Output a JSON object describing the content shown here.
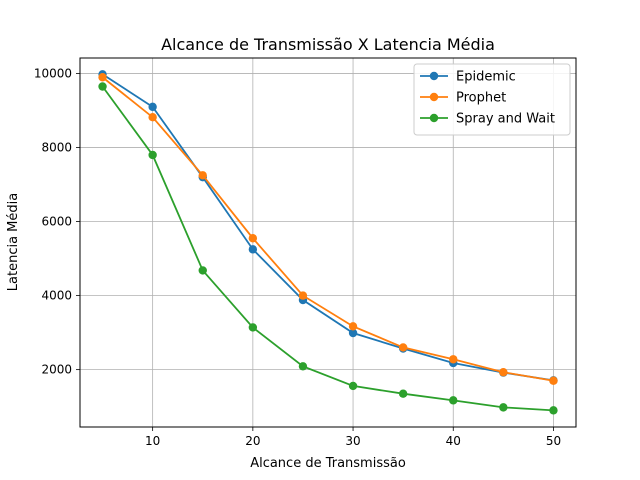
{
  "chart_data": {
    "type": "line",
    "title": "Alcance de Transmissão X Latencia Média",
    "xlabel": "Alcance de Transmissão",
    "ylabel": "Latencia Média",
    "x": [
      5,
      10,
      15,
      20,
      25,
      30,
      35,
      40,
      45,
      50
    ],
    "xlim": [
      2.75,
      52.25
    ],
    "ylim": [
      450,
      10420
    ],
    "xticks": [
      10,
      20,
      30,
      40,
      50
    ],
    "yticks": [
      2000,
      4000,
      6000,
      8000,
      10000
    ],
    "grid": true,
    "legend_position": "top-right",
    "series": [
      {
        "name": "Epidemic",
        "color": "#1f77b4",
        "values": [
          9980,
          9100,
          7200,
          5250,
          3880,
          2990,
          2570,
          2180,
          1920,
          1710
        ]
      },
      {
        "name": "Prophet",
        "color": "#ff7f0e",
        "values": [
          9900,
          8820,
          7250,
          5550,
          4000,
          3170,
          2600,
          2280,
          1930,
          1700
        ]
      },
      {
        "name": "Spray and Wait",
        "color": "#2ca02c",
        "values": [
          9650,
          7800,
          4680,
          3140,
          2090,
          1560,
          1350,
          1170,
          980,
          900
        ]
      }
    ]
  }
}
